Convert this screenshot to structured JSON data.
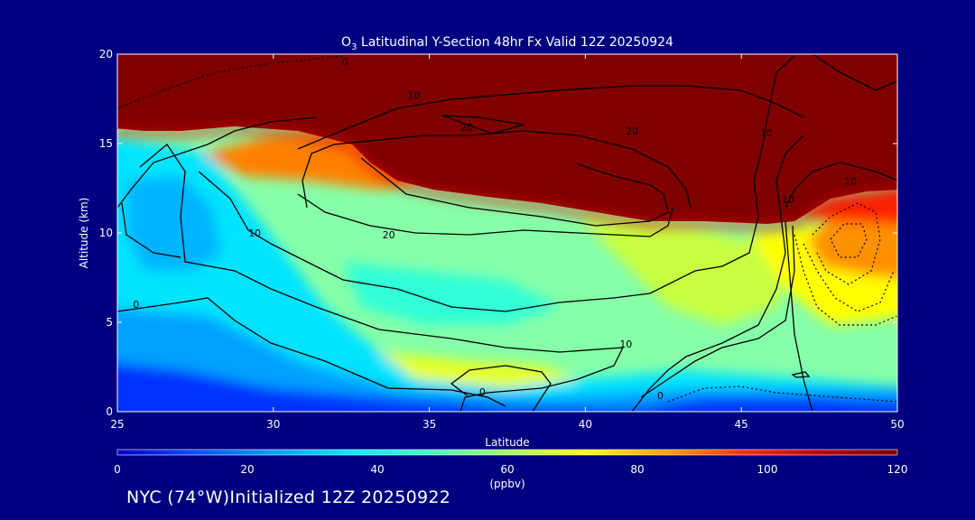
{
  "chart_data": {
    "type": "heatmap",
    "title_species": "O",
    "title_subscript": "3",
    "title_rest": " Latitudinal Y-Section 48hr  Fx Valid 12Z 20250924",
    "xlabel": "Latitude",
    "ylabel": "Altitude (km)",
    "xlim": [
      25,
      50
    ],
    "ylim": [
      0,
      20
    ],
    "x_ticks": [
      25,
      30,
      35,
      40,
      45,
      50
    ],
    "y_ticks": [
      0,
      5,
      10,
      15,
      20
    ],
    "colorbar": {
      "min": 0,
      "max": 120,
      "ticks": [
        0,
        20,
        40,
        60,
        80,
        100,
        120
      ],
      "unit": "(ppbv)",
      "colors": [
        "#0000c8",
        "#0050ff",
        "#00a0ff",
        "#00e8ff",
        "#40ffc0",
        "#a0ff60",
        "#ffff00",
        "#ffa000",
        "#ff3000",
        "#c00000",
        "#800000"
      ]
    },
    "contour_labels": [
      {
        "text": "0",
        "lat": 32.3,
        "alt": 19.6
      },
      {
        "text": "10",
        "lat": 34.5,
        "alt": 17.7
      },
      {
        "text": "20",
        "lat": 36.2,
        "alt": 15.9
      },
      {
        "text": "20",
        "lat": 41.5,
        "alt": 15.7
      },
      {
        "text": "10",
        "lat": 45.8,
        "alt": 15.6
      },
      {
        "text": "10",
        "lat": 48.5,
        "alt": 12.9
      },
      {
        "text": "10",
        "lat": 46.5,
        "alt": 11.9
      },
      {
        "text": "10",
        "lat": 29.4,
        "alt": 10.0
      },
      {
        "text": "20",
        "lat": 33.7,
        "alt": 9.9
      },
      {
        "text": "0",
        "lat": 25.6,
        "alt": 6.0
      },
      {
        "text": "10",
        "lat": 41.3,
        "alt": 3.8
      },
      {
        "text": "0",
        "lat": 36.7,
        "alt": 1.1
      },
      {
        "text": "0",
        "lat": 42.4,
        "alt": 0.9
      }
    ]
  },
  "footer": {
    "text": "NYC (74°W)Initialized 12Z 20250922"
  }
}
